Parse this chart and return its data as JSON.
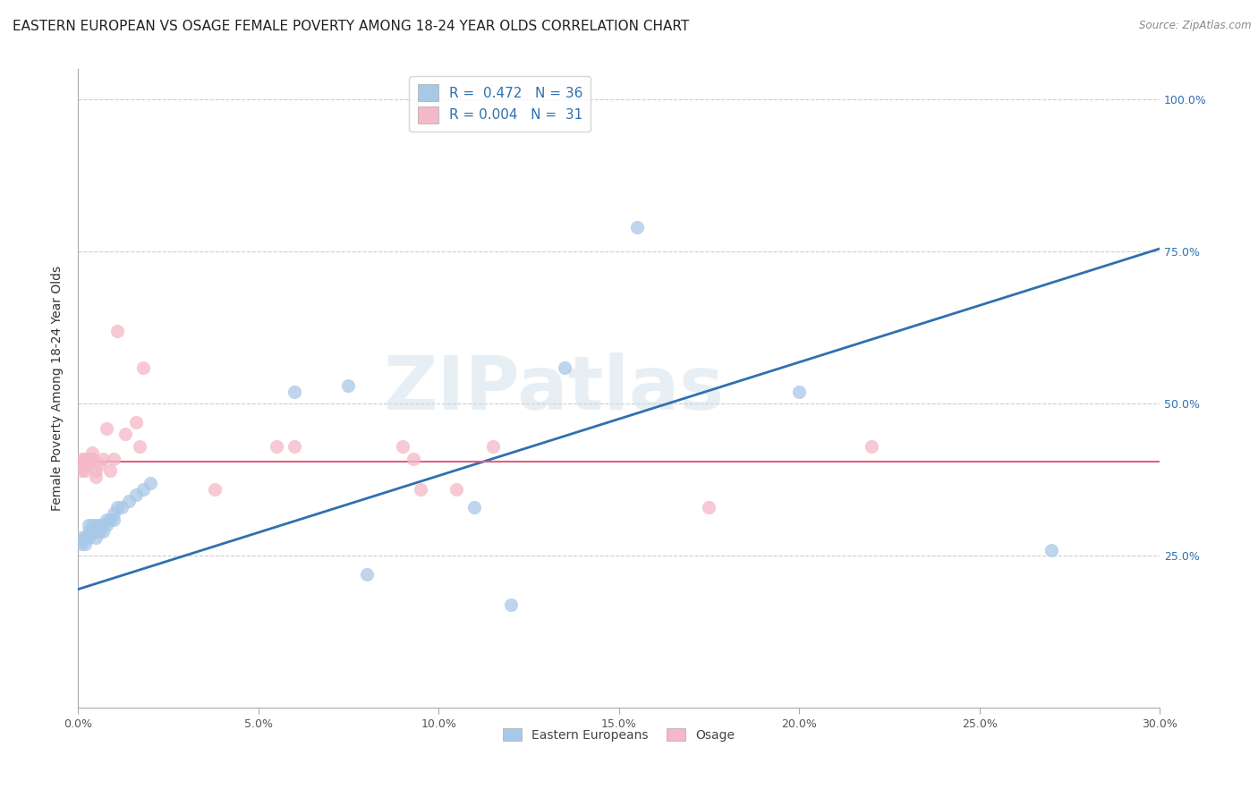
{
  "title": "EASTERN EUROPEAN VS OSAGE FEMALE POVERTY AMONG 18-24 YEAR OLDS CORRELATION CHART",
  "source": "Source: ZipAtlas.com",
  "ylabel": "Female Poverty Among 18-24 Year Olds",
  "xlim": [
    0.0,
    0.3
  ],
  "ylim": [
    0.0,
    1.05
  ],
  "xtick_labels": [
    "0.0%",
    "5.0%",
    "10.0%",
    "15.0%",
    "20.0%",
    "25.0%",
    "30.0%"
  ],
  "xtick_vals": [
    0.0,
    0.05,
    0.1,
    0.15,
    0.2,
    0.25,
    0.3
  ],
  "ytick_labels": [
    "100.0%",
    "75.0%",
    "50.0%",
    "25.0%"
  ],
  "ytick_vals": [
    1.0,
    0.75,
    0.5,
    0.25
  ],
  "blue_color": "#a8c8e8",
  "pink_color": "#f4b8c8",
  "blue_line_color": "#3070b0",
  "pink_line_color": "#e06080",
  "legend_blue_label": "R =  0.472   N = 36",
  "legend_pink_label": "R = 0.004   N =  31",
  "legend_blue_series": "Eastern Europeans",
  "legend_pink_series": "Osage",
  "watermark": "ZIPatlas",
  "blue_R": 0.472,
  "blue_N": 36,
  "pink_R": 0.004,
  "pink_N": 31,
  "blue_x": [
    0.001,
    0.001,
    0.002,
    0.002,
    0.003,
    0.003,
    0.003,
    0.004,
    0.004,
    0.005,
    0.005,
    0.005,
    0.006,
    0.006,
    0.007,
    0.007,
    0.008,
    0.008,
    0.009,
    0.01,
    0.01,
    0.011,
    0.012,
    0.014,
    0.016,
    0.018,
    0.02,
    0.06,
    0.075,
    0.08,
    0.11,
    0.12,
    0.135,
    0.155,
    0.2,
    0.27
  ],
  "blue_y": [
    0.27,
    0.28,
    0.27,
    0.28,
    0.28,
    0.29,
    0.3,
    0.3,
    0.29,
    0.28,
    0.29,
    0.3,
    0.29,
    0.3,
    0.29,
    0.3,
    0.3,
    0.31,
    0.31,
    0.31,
    0.32,
    0.33,
    0.33,
    0.34,
    0.35,
    0.36,
    0.37,
    0.52,
    0.53,
    0.22,
    0.33,
    0.17,
    0.56,
    0.79,
    0.52,
    0.26
  ],
  "pink_x": [
    0.001,
    0.001,
    0.002,
    0.002,
    0.002,
    0.003,
    0.003,
    0.004,
    0.004,
    0.005,
    0.005,
    0.006,
    0.007,
    0.008,
    0.009,
    0.01,
    0.011,
    0.013,
    0.016,
    0.017,
    0.018,
    0.038,
    0.055,
    0.06,
    0.09,
    0.093,
    0.095,
    0.105,
    0.115,
    0.175,
    0.22
  ],
  "pink_y": [
    0.39,
    0.41,
    0.39,
    0.4,
    0.41,
    0.4,
    0.41,
    0.41,
    0.42,
    0.38,
    0.39,
    0.4,
    0.41,
    0.46,
    0.39,
    0.41,
    0.62,
    0.45,
    0.47,
    0.43,
    0.56,
    0.36,
    0.43,
    0.43,
    0.43,
    0.41,
    0.36,
    0.36,
    0.43,
    0.33,
    0.43
  ],
  "title_fontsize": 11,
  "axis_label_fontsize": 10,
  "tick_fontsize": 9,
  "background_color": "#ffffff",
  "grid_color": "#cccccc",
  "blue_line_y0": 0.195,
  "blue_line_y1": 0.755,
  "pink_line_y0": 0.405,
  "pink_line_y1": 0.405
}
